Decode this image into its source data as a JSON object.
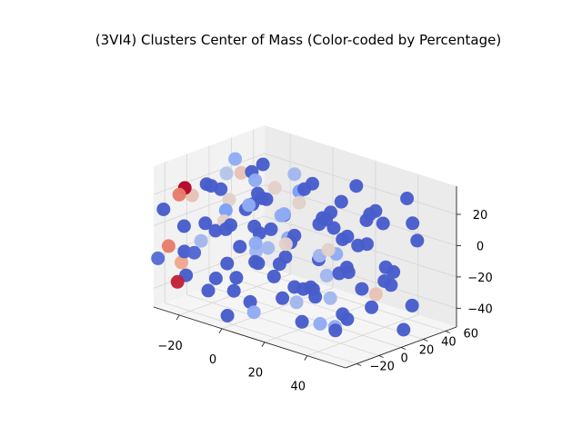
{
  "chart_data": {
    "type": "scatter",
    "title": "(3VI4) Clusters Center of Mass (Color-coded by Percentage)",
    "xlabel": "",
    "ylabel": "",
    "zlabel": "",
    "x_ticks": [
      "−20",
      "0",
      "20",
      "40"
    ],
    "y_ticks": [
      "−20",
      "0",
      "20",
      "40",
      "60"
    ],
    "z_ticks": [
      "−40",
      "−20",
      "0",
      "20"
    ],
    "xlim": [
      -32,
      58
    ],
    "ylim": [
      -30,
      70
    ],
    "zlim": [
      -52,
      38
    ],
    "colormap": "coolwarm",
    "grid": true,
    "points": [
      {
        "x": -30,
        "y": -25,
        "z": 10,
        "c": 0.05
      },
      {
        "x": -28,
        "y": -10,
        "z": -20,
        "c": 0.05
      },
      {
        "x": -26,
        "y": 5,
        "z": -5,
        "c": 0.05
      },
      {
        "x": -24,
        "y": 15,
        "z": 15,
        "c": 0.06
      },
      {
        "x": -22,
        "y": -20,
        "z": -30,
        "c": 0.05
      },
      {
        "x": -20,
        "y": 30,
        "z": 0,
        "c": 0.05
      },
      {
        "x": -18,
        "y": -5,
        "z": 25,
        "c": 0.05
      },
      {
        "x": -16,
        "y": 45,
        "z": -15,
        "c": 0.05
      },
      {
        "x": -14,
        "y": -28,
        "z": -10,
        "c": 0.08
      },
      {
        "x": -12,
        "y": 20,
        "z": 30,
        "c": 0.05
      },
      {
        "x": -10,
        "y": 0,
        "z": -40,
        "c": 0.05
      },
      {
        "x": -8,
        "y": 55,
        "z": 10,
        "c": 0.25
      },
      {
        "x": -6,
        "y": -15,
        "z": 5,
        "c": 0.05
      },
      {
        "x": -4,
        "y": 35,
        "z": -25,
        "c": 0.05
      },
      {
        "x": -2,
        "y": 10,
        "z": 20,
        "c": 0.05
      },
      {
        "x": 0,
        "y": -25,
        "z": -45,
        "c": 0.05
      },
      {
        "x": 2,
        "y": 60,
        "z": -5,
        "c": 0.05
      },
      {
        "x": 4,
        "y": -5,
        "z": -15,
        "c": 0.05
      },
      {
        "x": 6,
        "y": 40,
        "z": 25,
        "c": 0.05
      },
      {
        "x": 8,
        "y": 20,
        "z": -35,
        "c": 0.05
      },
      {
        "x": 10,
        "y": -20,
        "z": 15,
        "c": 0.05
      },
      {
        "x": 12,
        "y": 50,
        "z": -20,
        "c": 0.3
      },
      {
        "x": 14,
        "y": 5,
        "z": 0,
        "c": 0.05
      },
      {
        "x": 16,
        "y": 30,
        "z": 10,
        "c": 0.05
      },
      {
        "x": 18,
        "y": -10,
        "z": -30,
        "c": 0.05
      },
      {
        "x": 20,
        "y": 65,
        "z": 5,
        "c": 0.05
      },
      {
        "x": 22,
        "y": 15,
        "z": -10,
        "c": 0.05
      },
      {
        "x": 24,
        "y": 45,
        "z": 30,
        "c": 0.05
      },
      {
        "x": 26,
        "y": -28,
        "z": 0,
        "c": 0.05
      },
      {
        "x": 28,
        "y": 25,
        "z": -45,
        "c": 0.05
      },
      {
        "x": 30,
        "y": 0,
        "z": 20,
        "c": 0.05
      },
      {
        "x": 32,
        "y": 55,
        "z": -30,
        "c": 0.05
      },
      {
        "x": 34,
        "y": 35,
        "z": 15,
        "c": 0.05
      },
      {
        "x": 36,
        "y": -15,
        "z": -20,
        "c": 0.05
      },
      {
        "x": 38,
        "y": 10,
        "z": -40,
        "c": 0.05
      },
      {
        "x": 40,
        "y": 60,
        "z": 25,
        "c": 0.05
      },
      {
        "x": 42,
        "y": -5,
        "z": -5,
        "c": 0.05
      },
      {
        "x": 44,
        "y": 40,
        "z": -15,
        "c": 0.05
      },
      {
        "x": 46,
        "y": 20,
        "z": 30,
        "c": 0.05
      },
      {
        "x": 48,
        "y": -20,
        "z": -35,
        "c": 0.05
      },
      {
        "x": 50,
        "y": 50,
        "z": 5,
        "c": 0.05
      },
      {
        "x": 52,
        "y": 5,
        "z": -25,
        "c": 0.05
      },
      {
        "x": 54,
        "y": 30,
        "z": -45,
        "c": 0.05
      },
      {
        "x": 56,
        "y": -25,
        "z": 10,
        "c": 0.05
      },
      {
        "x": -28,
        "y": 40,
        "z": -30,
        "c": 0.05
      },
      {
        "x": -25,
        "y": 55,
        "z": 20,
        "c": 0.05
      },
      {
        "x": -22,
        "y": 0,
        "z": -45,
        "c": 0.05
      },
      {
        "x": -19,
        "y": 10,
        "z": 5,
        "c": 0.25
      },
      {
        "x": -15,
        "y": -15,
        "z": 30,
        "c": 0.05
      },
      {
        "x": -11,
        "y": 25,
        "z": -10,
        "c": 0.05
      },
      {
        "x": -7,
        "y": -22,
        "z": -25,
        "c": 0.05
      },
      {
        "x": -3,
        "y": 50,
        "z": 15,
        "c": 0.05
      },
      {
        "x": 1,
        "y": 15,
        "z": -30,
        "c": 0.05
      },
      {
        "x": 5,
        "y": -12,
        "z": 25,
        "c": 0.05
      },
      {
        "x": 9,
        "y": 35,
        "z": -40,
        "c": 0.05
      },
      {
        "x": 13,
        "y": -25,
        "z": -5,
        "c": 0.05
      },
      {
        "x": 17,
        "y": 60,
        "z": -15,
        "c": 0.05
      },
      {
        "x": 21,
        "y": -5,
        "z": 10,
        "c": 0.05
      },
      {
        "x": 25,
        "y": 20,
        "z": 20,
        "c": 0.05
      },
      {
        "x": 29,
        "y": 45,
        "z": -5,
        "c": 0.05
      },
      {
        "x": 33,
        "y": -20,
        "z": -15,
        "c": 0.05
      },
      {
        "x": 37,
        "y": 25,
        "z": -25,
        "c": 0.05
      },
      {
        "x": 41,
        "y": 0,
        "z": 15,
        "c": 0.05
      },
      {
        "x": 45,
        "y": 55,
        "z": -40,
        "c": 0.05
      },
      {
        "x": 49,
        "y": -10,
        "z": 0,
        "c": 0.05
      },
      {
        "x": 53,
        "y": 40,
        "z": 20,
        "c": 0.05
      },
      {
        "x": -29,
        "y": 20,
        "z": -15,
        "c": 0.05
      },
      {
        "x": -24,
        "y": -18,
        "z": 0,
        "c": 0.05
      },
      {
        "x": -17,
        "y": 35,
        "z": 10,
        "c": 0.05
      },
      {
        "x": -9,
        "y": -8,
        "z": -20,
        "c": 0.05
      },
      {
        "x": -1,
        "y": 28,
        "z": 5,
        "c": 0.05
      },
      {
        "x": 7,
        "y": -18,
        "z": -35,
        "c": 0.05
      },
      {
        "x": 15,
        "y": 42,
        "z": 0,
        "c": 0.05
      },
      {
        "x": 23,
        "y": -2,
        "z": -45,
        "c": 0.05
      },
      {
        "x": 31,
        "y": 18,
        "z": 30,
        "c": 0.05
      },
      {
        "x": 39,
        "y": -25,
        "z": -10,
        "c": 0.05
      },
      {
        "x": 47,
        "y": 32,
        "z": -20,
        "c": 0.05
      },
      {
        "x": 55,
        "y": 12,
        "z": 0,
        "c": 0.05
      },
      {
        "x": -27,
        "y": 62,
        "z": -5,
        "c": 0.05
      },
      {
        "x": -13,
        "y": 8,
        "z": -35,
        "c": 0.05
      },
      {
        "x": 3,
        "y": -28,
        "z": 15,
        "c": 0.05
      },
      {
        "x": 19,
        "y": 28,
        "z": -25,
        "c": 0.35
      },
      {
        "x": 35,
        "y": 48,
        "z": 10,
        "c": 0.05
      },
      {
        "x": 51,
        "y": -15,
        "z": 25,
        "c": 0.05
      },
      {
        "x": 10,
        "y": -25,
        "z": 30,
        "c": 0.3
      },
      {
        "x": 20,
        "y": -15,
        "z": 25,
        "c": 0.3
      },
      {
        "x": 25,
        "y": -22,
        "z": 30,
        "c": 0.3
      },
      {
        "x": 0,
        "y": 0,
        "z": 35,
        "c": 0.3
      },
      {
        "x": -5,
        "y": 10,
        "z": -10,
        "c": 0.3
      },
      {
        "x": -10,
        "y": 20,
        "z": -20,
        "c": 0.35
      },
      {
        "x": 30,
        "y": 10,
        "z": -30,
        "c": 0.35
      },
      {
        "x": 40,
        "y": -5,
        "z": -40,
        "c": 0.3
      },
      {
        "x": -20,
        "y": 50,
        "z": -30,
        "c": 0.35
      },
      {
        "x": 15,
        "y": -30,
        "z": -35,
        "c": 0.3
      },
      {
        "x": 5,
        "y": 20,
        "z": -5,
        "c": 0.3
      },
      {
        "x": -15,
        "y": -20,
        "z": -5,
        "c": 0.35
      },
      {
        "x": 35,
        "y": -30,
        "z": -20,
        "c": 0.35
      },
      {
        "x": 45,
        "y": -28,
        "z": -30,
        "c": 0.3
      },
      {
        "x": -25,
        "y": 30,
        "z": 30,
        "c": 0.3
      },
      {
        "x": -20,
        "y": 15,
        "z": 10,
        "c": 0.55
      },
      {
        "x": -12,
        "y": -5,
        "z": 5,
        "c": 0.55
      },
      {
        "x": 5,
        "y": 30,
        "z": 15,
        "c": 0.55
      },
      {
        "x": 28,
        "y": 55,
        "z": -40,
        "c": 0.6
      },
      {
        "x": -30,
        "y": 45,
        "z": 15,
        "c": 0.6
      },
      {
        "x": 50,
        "y": -30,
        "z": 20,
        "c": 0.55
      },
      {
        "x": -22,
        "y": 60,
        "z": 5,
        "c": 0.55
      },
      {
        "x": 25,
        "y": 10,
        "z": -5,
        "c": 0.35
      },
      {
        "x": -5,
        "y": 45,
        "z": 25,
        "c": 0.35
      },
      {
        "x": 30,
        "y": -30,
        "z": 15,
        "c": 0.55
      },
      {
        "x": -28,
        "y": 28,
        "z": 20,
        "c": 0.4
      },
      {
        "x": -27,
        "y": -5,
        "z": 15,
        "c": 0.6
      },
      {
        "x": -20,
        "y": -30,
        "z": 25,
        "c": 0.8
      },
      {
        "x": -25,
        "y": -30,
        "z": -10,
        "c": 0.8
      },
      {
        "x": -30,
        "y": -30,
        "z": -20,
        "c": 0.1
      },
      {
        "x": -25,
        "y": -22,
        "z": -35,
        "c": 0.95
      },
      {
        "x": -32,
        "y": -5,
        "z": -30,
        "c": 0.7
      },
      {
        "x": -20,
        "y": -25,
        "z": 28,
        "c": 1.0
      }
    ]
  }
}
